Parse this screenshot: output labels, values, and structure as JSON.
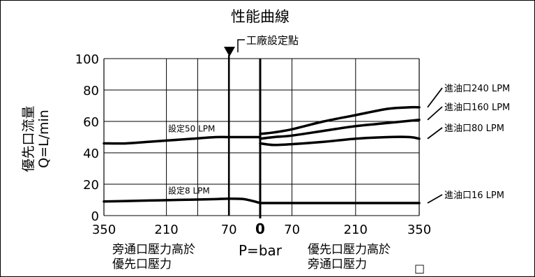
{
  "chart_data": {
    "type": "line",
    "title": "性能曲線",
    "ylabel_line1": "優先口流量",
    "ylabel_line2": "Q=L/min",
    "x_unit_label": "P=bar",
    "x_left_caption_line1": "旁通口壓力高於",
    "x_left_caption_line2": "優先口壓力",
    "x_right_caption_line1": "優先口壓力高於",
    "x_right_caption_line2": "旁通口壓力",
    "factory_marker_label": "工廠設定點",
    "corner_symbol": "□",
    "ylim": [
      0,
      100
    ],
    "y_ticks": [
      0,
      20,
      40,
      60,
      80,
      100
    ],
    "left_panel_x_ticks": [
      "350",
      "210",
      "70"
    ],
    "zero_tick": "0",
    "right_panel_x_ticks": [
      "70",
      "210",
      "350"
    ],
    "left_panel_xlim": [
      350,
      0
    ],
    "right_panel_xlim": [
      0,
      350
    ],
    "factory_setpoint_bar": 70,
    "left_series": [
      {
        "name": "設定50 LPM",
        "points": [
          [
            350,
            46
          ],
          [
            300,
            46
          ],
          [
            250,
            47
          ],
          [
            200,
            48
          ],
          [
            150,
            49
          ],
          [
            100,
            50
          ],
          [
            70,
            50
          ],
          [
            30,
            50
          ],
          [
            0,
            50
          ]
        ]
      },
      {
        "name": "設定8 LPM",
        "points": [
          [
            350,
            9
          ],
          [
            300,
            9.3
          ],
          [
            250,
            9.6
          ],
          [
            200,
            9.9
          ],
          [
            150,
            10.2
          ],
          [
            100,
            10.5
          ],
          [
            70,
            10.8
          ],
          [
            40,
            10.6
          ],
          [
            20,
            9.5
          ],
          [
            0,
            8
          ]
        ]
      }
    ],
    "right_series": [
      {
        "name": "進油口240 LPM",
        "points": [
          [
            0,
            52
          ],
          [
            30,
            53
          ],
          [
            70,
            55
          ],
          [
            140,
            60
          ],
          [
            210,
            64
          ],
          [
            280,
            68
          ],
          [
            330,
            69
          ],
          [
            350,
            69
          ]
        ]
      },
      {
        "name": "進油口160 LPM",
        "points": [
          [
            0,
            49
          ],
          [
            30,
            50
          ],
          [
            70,
            51
          ],
          [
            140,
            54
          ],
          [
            210,
            57
          ],
          [
            280,
            59
          ],
          [
            350,
            61
          ]
        ]
      },
      {
        "name": "進油口80 LPM",
        "points": [
          [
            0,
            46
          ],
          [
            30,
            45
          ],
          [
            70,
            45.5
          ],
          [
            140,
            47
          ],
          [
            210,
            49
          ],
          [
            280,
            50
          ],
          [
            330,
            50
          ],
          [
            350,
            49
          ]
        ]
      },
      {
        "name": "進油口16 LPM",
        "points": [
          [
            0,
            8
          ],
          [
            70,
            8
          ],
          [
            140,
            8
          ],
          [
            210,
            8
          ],
          [
            280,
            8
          ],
          [
            350,
            8
          ]
        ]
      }
    ]
  }
}
